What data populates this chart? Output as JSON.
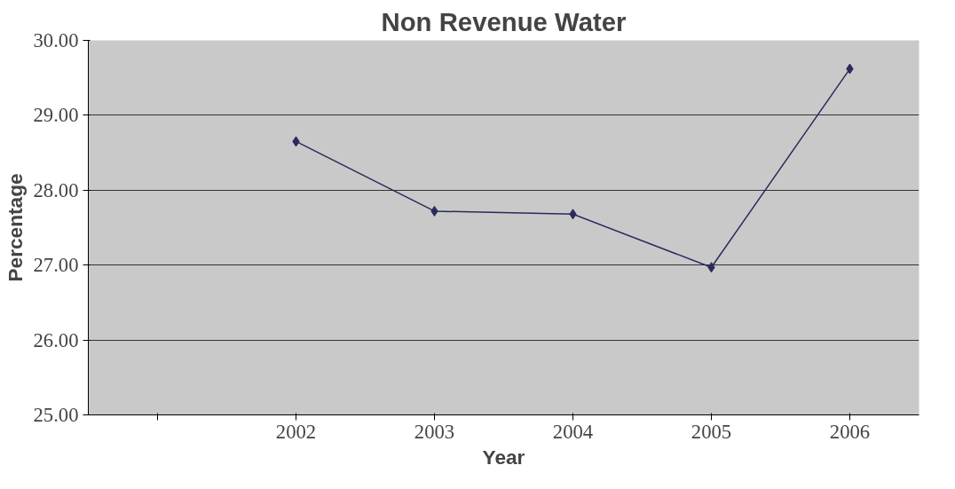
{
  "chart_data": {
    "type": "line",
    "title": "Non Revenue Water",
    "xlabel": "Year",
    "ylabel": "Percentage",
    "categories": [
      null,
      "2002",
      "2003",
      "2004",
      "2005",
      "2006"
    ],
    "series": [
      {
        "color": "#2a2a5c",
        "values": [
          null,
          28.65,
          27.72,
          27.68,
          26.97,
          29.62
        ]
      }
    ],
    "ylim": [
      25,
      30
    ],
    "yticks": [
      {
        "value": 25,
        "label": "25.00"
      },
      {
        "value": 26,
        "label": "26.00"
      },
      {
        "value": 27,
        "label": "27.00"
      },
      {
        "value": 28,
        "label": "28.00"
      },
      {
        "value": 29,
        "label": "29.00"
      },
      {
        "value": 30,
        "label": "30.00"
      }
    ],
    "grid": "y",
    "marker": "diamond",
    "line_style": "solid"
  }
}
